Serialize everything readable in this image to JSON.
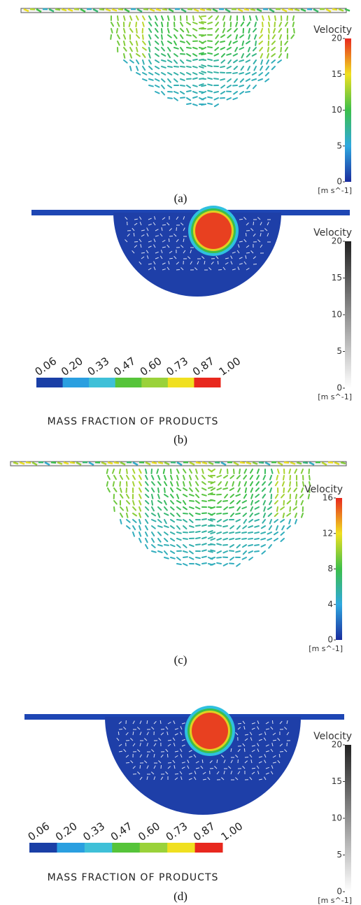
{
  "panels": [
    {
      "caption": "(a)",
      "colorbar": {
        "title": "Velocity",
        "ticks": [
          "0",
          "5",
          "10",
          "15",
          "20"
        ],
        "unit": "[m s^-1]"
      }
    },
    {
      "caption": "(b)",
      "colorbar": {
        "title": "Velocity",
        "ticks": [
          "0",
          "5",
          "10",
          "15",
          "20"
        ],
        "unit": "[m s^-1]"
      },
      "legend": {
        "labels": [
          "0.06",
          "0.20",
          "0.33",
          "0.47",
          "0.60",
          "0.73",
          "0.87",
          "1.00"
        ],
        "title": "MASS FRACTION OF PRODUCTS"
      }
    },
    {
      "caption": "(c)",
      "colorbar": {
        "title": "Velocity",
        "ticks": [
          "0",
          "4",
          "8",
          "12",
          "16"
        ],
        "unit": "[m s^-1]"
      }
    },
    {
      "caption": "(d)",
      "colorbar": {
        "title": "Velocity",
        "ticks": [
          "0",
          "5",
          "10",
          "15",
          "20"
        ],
        "unit": "[m s^-1]"
      },
      "legend": {
        "labels": [
          "0.06",
          "0.20",
          "0.33",
          "0.47",
          "0.60",
          "0.73",
          "0.87",
          "1.00"
        ],
        "title": "MASS FRACTION OF PRODUCTS"
      }
    }
  ]
}
